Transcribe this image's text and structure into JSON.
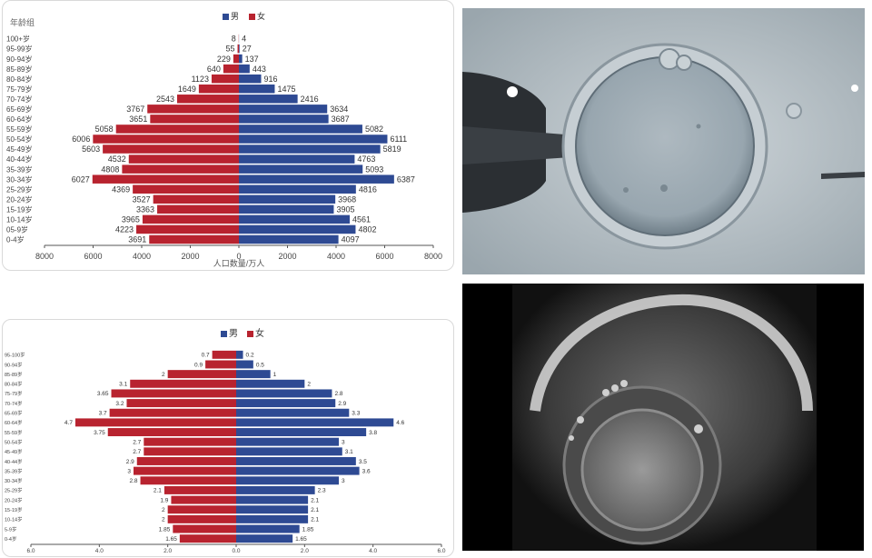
{
  "chart_data": [
    {
      "type": "bar",
      "orientation": "horizontal-mirrored",
      "ylabel": "年龄组",
      "xlabel": "人口数量/万人",
      "legend": [
        "男",
        "女"
      ],
      "legend_position": "top-center",
      "categories": [
        "100+岁",
        "95-99岁",
        "90-94岁",
        "85-89岁",
        "80-84岁",
        "75-79岁",
        "70-74岁",
        "65-69岁",
        "60-64岁",
        "55-59岁",
        "50-54岁",
        "45-49岁",
        "40-44岁",
        "35-39岁",
        "30-34岁",
        "25-29岁",
        "20-24岁",
        "15-19岁",
        "10-14岁",
        "05-9岁",
        "0-4岁"
      ],
      "series": [
        {
          "name": "男",
          "color": "#2e4a93",
          "side": "right",
          "values": [
            4,
            27,
            137,
            443,
            916,
            1475,
            2416,
            3634,
            3687,
            5082,
            6111,
            5819,
            4763,
            5093,
            6387,
            4816,
            3968,
            3905,
            4561,
            4802,
            4097
          ]
        },
        {
          "name": "女",
          "color": "#b8232f",
          "side": "left",
          "values": [
            8,
            55,
            229,
            640,
            1123,
            1649,
            2543,
            3767,
            3651,
            5058,
            6006,
            5603,
            4532,
            4808,
            6027,
            4369,
            3527,
            3363,
            3965,
            4223,
            3691
          ]
        }
      ],
      "xticks": [
        "8000",
        "6000",
        "4000",
        "2000",
        "0",
        "2000",
        "4000",
        "6000",
        "8000"
      ],
      "xlim": [
        -8000,
        8000
      ]
    },
    {
      "type": "bar",
      "orientation": "horizontal-mirrored",
      "legend": [
        "男",
        "女"
      ],
      "legend_position": "top-center",
      "categories": [
        "95-100岁",
        "90-94岁",
        "85-89岁",
        "80-84岁",
        "75-79岁",
        "70-74岁",
        "65-69岁",
        "60-64岁",
        "55-59岁",
        "50-54岁",
        "45-49岁",
        "40-44岁",
        "35-39岁",
        "30-34岁",
        "25-29岁",
        "20-24岁",
        "15-19岁",
        "10-14岁",
        "5-9岁",
        "0-4岁"
      ],
      "series": [
        {
          "name": "男",
          "color": "#2e4a93",
          "side": "right",
          "values": [
            0.2,
            0.5,
            1,
            2,
            2.8,
            2.9,
            3.3,
            4.6,
            3.8,
            3,
            3.1,
            3.5,
            3.6,
            3,
            2.3,
            2.1,
            2.1,
            2.1,
            1.85,
            1.65
          ]
        },
        {
          "name": "女",
          "color": "#b8232f",
          "side": "left",
          "values": [
            0.7,
            0.9,
            2,
            3.1,
            3.65,
            3.2,
            3.7,
            4.7,
            3.75,
            2.7,
            2.7,
            2.9,
            3,
            2.8,
            2.1,
            1.9,
            2,
            2,
            1.85,
            1.65
          ]
        }
      ],
      "xticks": [
        "6.0",
        "4.0",
        "2.0",
        "0.0",
        "2.0",
        "4.0",
        "6.0"
      ],
      "xlim": [
        -6,
        6
      ]
    }
  ],
  "photos": [
    {
      "icon": "oocyte-micrograph-holding-pipette"
    },
    {
      "icon": "oocyte-micrograph-darkfield"
    }
  ]
}
